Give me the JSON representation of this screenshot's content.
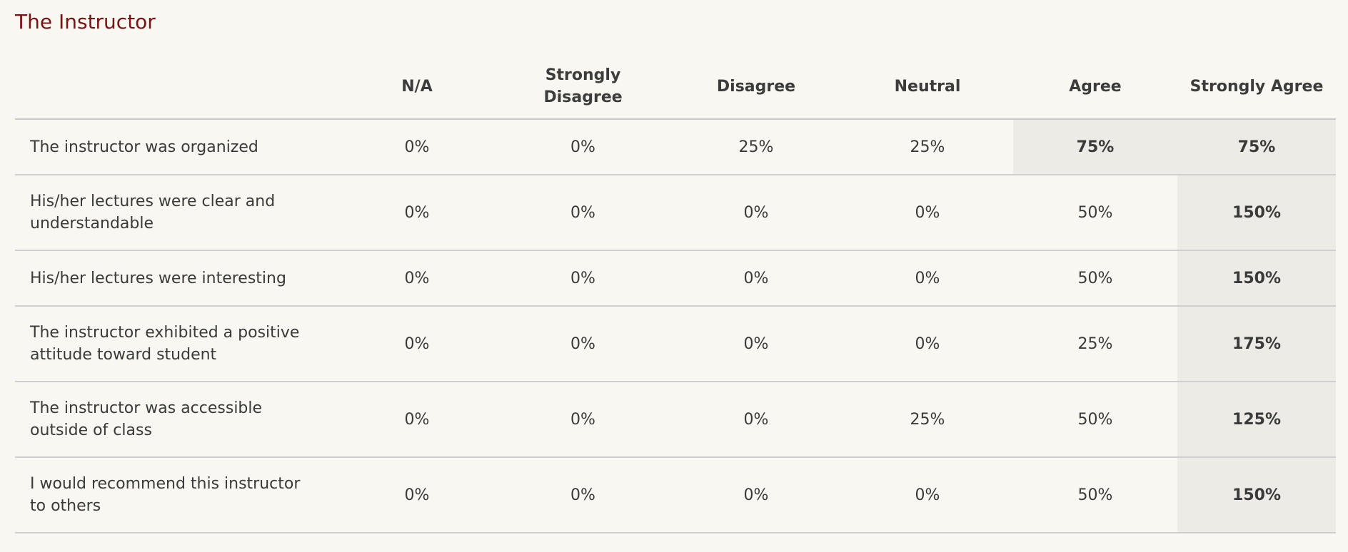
{
  "section": {
    "title": "The Instructor"
  },
  "table": {
    "columns": [
      "",
      "N/A",
      "Strongly Disagree",
      "Disagree",
      "Neutral",
      "Agree",
      "Strongly Agree"
    ],
    "rows": [
      {
        "question": "The instructor was organized",
        "values": [
          "0%",
          "0%",
          "25%",
          "25%",
          "75%",
          "75%"
        ],
        "highlighted": [
          "Agree",
          "Strongly Agree"
        ]
      },
      {
        "question": "His/her lectures were clear and understandable",
        "values": [
          "0%",
          "0%",
          "0%",
          "0%",
          "50%",
          "150%"
        ],
        "highlighted": [
          "Strongly Agree"
        ]
      },
      {
        "question": "His/her lectures were interesting",
        "values": [
          "0%",
          "0%",
          "0%",
          "0%",
          "50%",
          "150%"
        ],
        "highlighted": [
          "Strongly Agree"
        ]
      },
      {
        "question": "The instructor exhibited a positive attitude toward student",
        "values": [
          "0%",
          "0%",
          "0%",
          "0%",
          "25%",
          "175%"
        ],
        "highlighted": [
          "Strongly Agree"
        ]
      },
      {
        "question": "The instructor was accessible outside of class",
        "values": [
          "0%",
          "0%",
          "0%",
          "25%",
          "50%",
          "125%"
        ],
        "highlighted": [
          "Strongly Agree"
        ]
      },
      {
        "question": "I would recommend this instructor to others",
        "values": [
          "0%",
          "0%",
          "0%",
          "0%",
          "50%",
          "150%"
        ],
        "highlighted": [
          "Strongly Agree"
        ]
      }
    ]
  },
  "colors": {
    "title": "#7a1414",
    "background": "#f8f7f1",
    "highlight": "#ecebe6",
    "text": "#3a3a3a"
  }
}
